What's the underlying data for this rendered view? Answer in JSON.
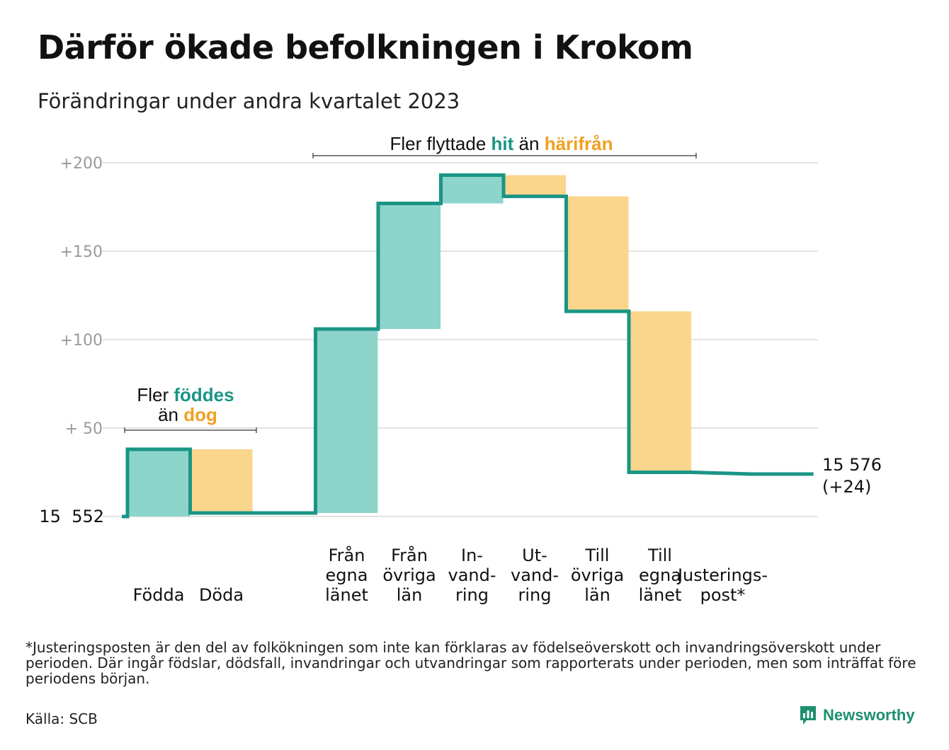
{
  "title": "Därför ökade befolkningen i Krokom",
  "subtitle": "Förändringar under andra kvartalet 2023",
  "footnote": "*Justeringsposten är den del av folkökningen som inte kan förklaras av födelseöverskott och invandringsöverskott under perioden. Där ingår födslar, dödsfall, invandringar och utvandringar som rapporterats under perioden, men som inträffat före periodens början.",
  "source": "Källa: SCB",
  "brand": {
    "name": "Newsworthy",
    "icon": "newsworthy-logo-icon"
  },
  "colors": {
    "increase": "#8dd4cb",
    "decrease": "#fad58c",
    "line": "#1a9585",
    "highlight_green": "#1a9585",
    "highlight_orange": "#f0a020",
    "grid": "#e2e2e2",
    "tick": "#9a9a9a"
  },
  "annotations": {
    "natural": {
      "line1_prefix": "Fler ",
      "line1_highlight": "föddes",
      "line2_prefix": "än ",
      "line2_highlight": "dog"
    },
    "migration": {
      "prefix": "Fler flyttade ",
      "highlight1": "hit",
      "middle": " än ",
      "highlight2": "härifrån"
    }
  },
  "chart_data": {
    "type": "waterfall",
    "base_label": "15  552",
    "end_label_lines": [
      "15 576",
      "(+24)"
    ],
    "y_ticks": [
      {
        "value": 200,
        "label": "+200"
      },
      {
        "value": 150,
        "label": "+150"
      },
      {
        "value": 100,
        "label": "+100"
      },
      {
        "value": 50,
        "label": "+  50"
      }
    ],
    "ylim": [
      0,
      200
    ],
    "grid": true,
    "categories": [
      {
        "label_lines": [
          "Födda"
        ],
        "start": 0,
        "end": 38,
        "kind": "increase"
      },
      {
        "label_lines": [
          "Döda"
        ],
        "start": 38,
        "end": 2,
        "kind": "decrease"
      },
      {
        "label_lines": [],
        "start": 2,
        "end": 2,
        "kind": "spacer"
      },
      {
        "label_lines": [
          "Från",
          "egna",
          "länet"
        ],
        "start": 2,
        "end": 106,
        "kind": "increase"
      },
      {
        "label_lines": [
          "Från",
          "övriga",
          "län"
        ],
        "start": 106,
        "end": 177,
        "kind": "increase"
      },
      {
        "label_lines": [
          "In-",
          "vand-",
          "ring"
        ],
        "start": 177,
        "end": 193,
        "kind": "increase"
      },
      {
        "label_lines": [
          "Ut-",
          "vand-",
          "ring"
        ],
        "start": 193,
        "end": 181,
        "kind": "decrease"
      },
      {
        "label_lines": [
          "Till",
          "övriga",
          "län"
        ],
        "start": 181,
        "end": 116,
        "kind": "decrease"
      },
      {
        "label_lines": [
          "Till",
          "egna",
          "länet"
        ],
        "start": 116,
        "end": 25,
        "kind": "decrease"
      },
      {
        "label_lines": [
          "Justerings-",
          "post*"
        ],
        "start": 25,
        "end": 24,
        "kind": "adjustment"
      }
    ],
    "total_change": 24
  }
}
